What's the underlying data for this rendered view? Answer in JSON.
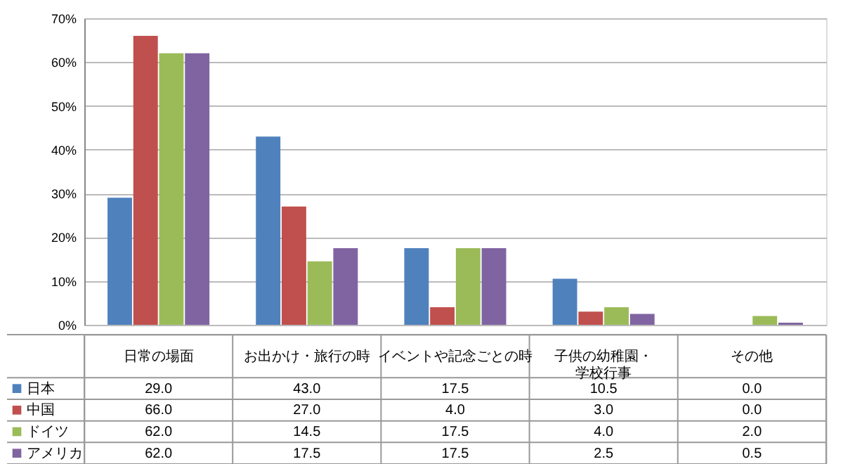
{
  "chart_data": {
    "type": "bar",
    "categories": [
      "日常の場面",
      "お出かけ・旅行の時",
      "イベントや記念ごとの時",
      "子供の幼稚園・学校行事",
      "その他"
    ],
    "series": [
      {
        "name": "日本",
        "color": "#4f81bd",
        "values": [
          29.0,
          43.0,
          17.5,
          10.5,
          0.0
        ],
        "value_labels": [
          "29.0",
          "43.0",
          "17.5",
          "10.5",
          "0.0"
        ]
      },
      {
        "name": "中国",
        "color": "#c0504d",
        "values": [
          66.0,
          27.0,
          4.0,
          3.0,
          0.0
        ],
        "value_labels": [
          "66.0",
          "27.0",
          "4.0",
          "3.0",
          "0.0"
        ]
      },
      {
        "name": "ドイツ",
        "color": "#9bbb59",
        "values": [
          62.0,
          14.5,
          17.5,
          4.0,
          2.0
        ],
        "value_labels": [
          "62.0",
          "14.5",
          "17.5",
          "4.0",
          "2.0"
        ]
      },
      {
        "name": "アメリカ",
        "color": "#8064a2",
        "values": [
          62.0,
          17.5,
          17.5,
          2.5,
          0.5
        ],
        "value_labels": [
          "62.0",
          "17.5",
          "17.5",
          "2.5",
          "0.5"
        ]
      }
    ],
    "ylim": [
      0,
      70
    ],
    "yticks": [
      {
        "value": 0,
        "label": "0%"
      },
      {
        "value": 10,
        "label": "10%"
      },
      {
        "value": 20,
        "label": "20%"
      },
      {
        "value": 30,
        "label": "30%"
      },
      {
        "value": 40,
        "label": "40%"
      },
      {
        "value": 50,
        "label": "50%"
      },
      {
        "value": 60,
        "label": "60%"
      },
      {
        "value": 70,
        "label": "70%"
      }
    ],
    "grid": "y",
    "legend": "bottom"
  }
}
